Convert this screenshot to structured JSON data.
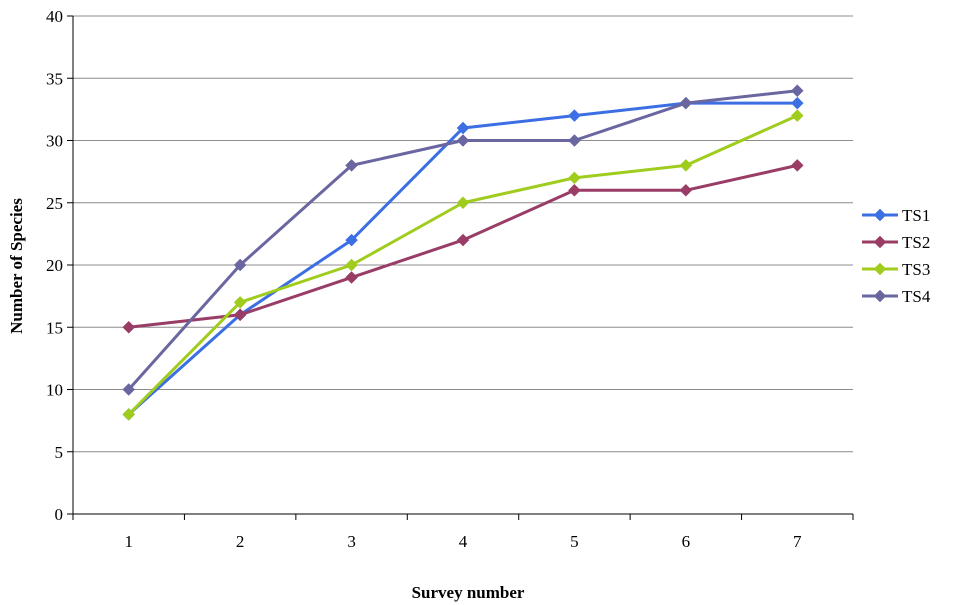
{
  "chart_data": {
    "type": "line",
    "title": "",
    "xlabel": "Survey number",
    "ylabel": "Number of Species",
    "x": [
      1,
      2,
      3,
      4,
      5,
      6,
      7
    ],
    "ylim": [
      0,
      40
    ],
    "yticks": [
      0,
      5,
      10,
      15,
      20,
      25,
      30,
      35,
      40
    ],
    "grid": "horizontal",
    "legend": "right",
    "marker": "diamond",
    "series": [
      {
        "name": "TS1",
        "color": "#3c6ee4",
        "values": [
          8,
          16,
          22,
          31,
          32,
          33,
          33
        ]
      },
      {
        "name": "TS2",
        "color": "#993d66",
        "values": [
          15,
          16,
          19,
          22,
          26,
          26,
          28
        ]
      },
      {
        "name": "TS3",
        "color": "#a0cc1e",
        "values": [
          8,
          17,
          20,
          25,
          27,
          28,
          32
        ]
      },
      {
        "name": "TS4",
        "color": "#6a66a0",
        "values": [
          10,
          20,
          28,
          30,
          30,
          33,
          34
        ]
      }
    ]
  }
}
